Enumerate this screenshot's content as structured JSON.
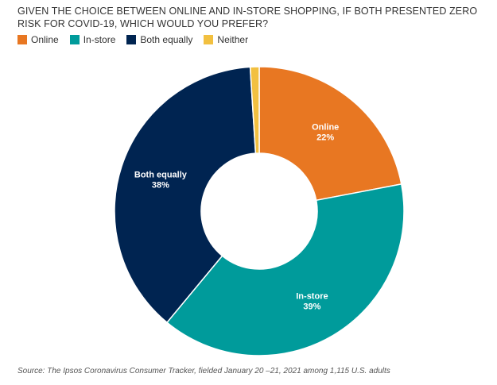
{
  "title": "GIVEN THE CHOICE BETWEEN ONLINE AND IN-STORE SHOPPING, IF BOTH PRESENTED ZERO RISK FOR COVID-19, WHICH WOULD YOU PREFER?",
  "source": "Source: The Ipsos Coronavirus Consumer Tracker, fielded January 20 –21, 2021 among 1,115 U.S. adults",
  "chart_data": {
    "type": "pie",
    "subtype": "donut",
    "title": "GIVEN THE CHOICE BETWEEN ONLINE AND IN-STORE SHOPPING, IF BOTH PRESENTED ZERO RISK FOR COVID-19, WHICH WOULD YOU PREFER?",
    "legend_position": "top-left",
    "slices": [
      {
        "name": "Online",
        "value": 22,
        "label": "22%",
        "color": "#E87722",
        "labeled": true
      },
      {
        "name": "In-store",
        "value": 39,
        "label": "39%",
        "color": "#009B9B",
        "labeled": true
      },
      {
        "name": "Both equally",
        "value": 38,
        "label": "38%",
        "color": "#002451",
        "labeled": true
      },
      {
        "name": "Neither",
        "value": 1,
        "label": "1%",
        "color": "#F2C040",
        "labeled": false
      }
    ]
  }
}
